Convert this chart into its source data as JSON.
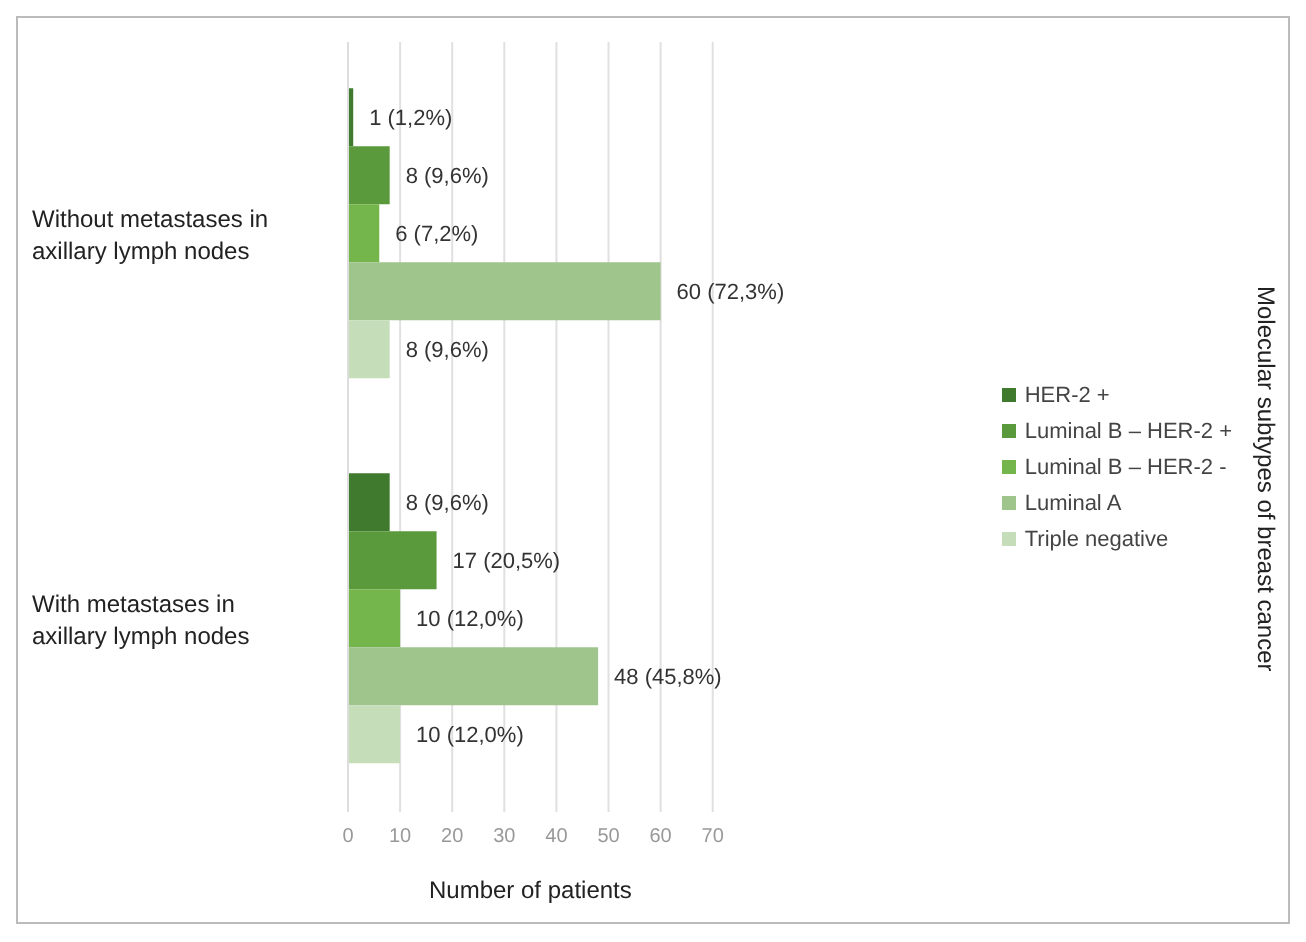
{
  "chart_data": {
    "type": "bar",
    "orientation": "horizontal",
    "xlabel": "Number of patients",
    "legend_title": "Molecular subtypes of breast cancer",
    "categories": [
      "Without metastases in axillary lymph nodes",
      "With metastases in axillary lymph nodes"
    ],
    "series": [
      {
        "name": "HER-2 +",
        "color": "#3f7a2e",
        "values": [
          1,
          8
        ],
        "value_labels": [
          "1 (1,2%)",
          "8 (9,6%)"
        ]
      },
      {
        "name": "Luminal B – HER-2 +",
        "color": "#5b9a3c",
        "values": [
          8,
          17
        ],
        "value_labels": [
          "8 (9,6%)",
          "17 (20,5%)"
        ]
      },
      {
        "name": "Luminal B – HER-2 -",
        "color": "#74b54c",
        "values": [
          6,
          10
        ],
        "value_labels": [
          "6 (7,2%)",
          "10 (12,0%)"
        ]
      },
      {
        "name": "Luminal A",
        "color": "#9fc48c",
        "values": [
          60,
          48
        ],
        "value_labels": [
          "60 (72,3%)",
          "48 (45,8%)"
        ]
      },
      {
        "name": "Triple negative",
        "color": "#c5ddb8",
        "values": [
          8,
          10
        ],
        "value_labels": [
          "8 (9,6%)",
          "10 (12,0%)"
        ]
      }
    ],
    "xlim": [
      0,
      70
    ],
    "xticks": [
      0,
      10,
      20,
      30,
      40,
      50,
      60,
      70
    ],
    "grid": "x",
    "legend": "right"
  }
}
